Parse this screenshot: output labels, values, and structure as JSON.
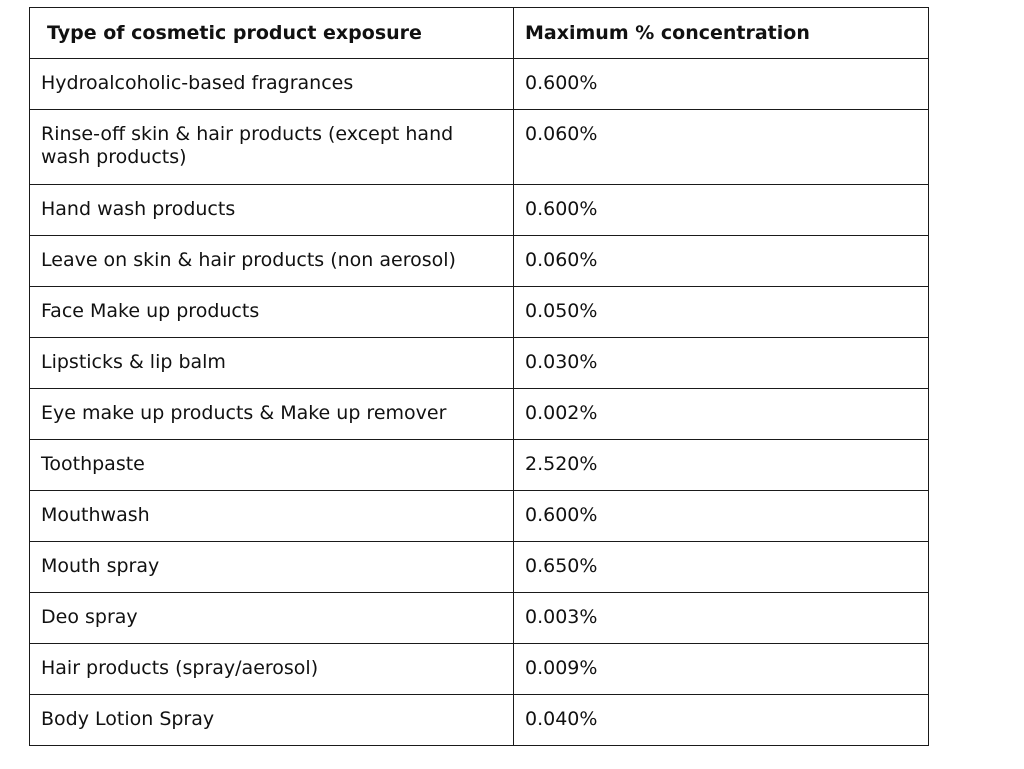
{
  "table": {
    "headers": [
      "Type of cosmetic product exposure",
      "Maximum % concentration"
    ],
    "rows": [
      [
        "Hydroalcoholic-based fragrances",
        "0.600%"
      ],
      [
        "Rinse-off skin & hair products (except hand wash products)",
        "0.060%"
      ],
      [
        "Hand wash products",
        "0.600%"
      ],
      [
        "Leave on skin & hair products (non aerosol)",
        "0.060%"
      ],
      [
        "Face Make up products",
        "0.050%"
      ],
      [
        "Lipsticks & lip balm",
        "0.030%"
      ],
      [
        "Eye make up products & Make up remover",
        "0.002%"
      ],
      [
        "Toothpaste",
        "2.520%"
      ],
      [
        "Mouthwash",
        "0.600%"
      ],
      [
        "Mouth spray",
        "0.650%"
      ],
      [
        "Deo spray",
        "0.003%"
      ],
      [
        "Hair products (spray/aerosol)",
        "0.009%"
      ],
      [
        "Body Lotion Spray",
        "0.040%"
      ]
    ]
  }
}
